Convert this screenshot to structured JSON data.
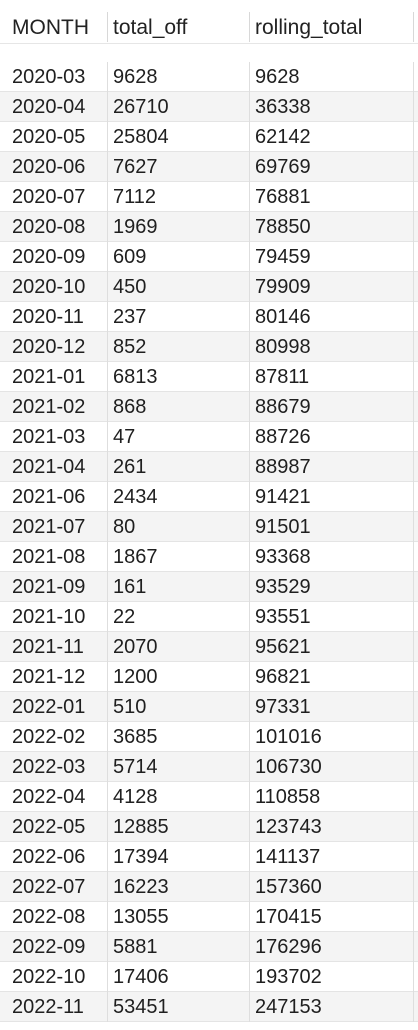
{
  "table": {
    "columns": [
      "MONTH",
      "total_off",
      "rolling_total"
    ],
    "rows": [
      [
        "2020-03",
        "9628",
        "9628"
      ],
      [
        "2020-04",
        "26710",
        "36338"
      ],
      [
        "2020-05",
        "25804",
        "62142"
      ],
      [
        "2020-06",
        "7627",
        "69769"
      ],
      [
        "2020-07",
        "7112",
        "76881"
      ],
      [
        "2020-08",
        "1969",
        "78850"
      ],
      [
        "2020-09",
        "609",
        "79459"
      ],
      [
        "2020-10",
        "450",
        "79909"
      ],
      [
        "2020-11",
        "237",
        "80146"
      ],
      [
        "2020-12",
        "852",
        "80998"
      ],
      [
        "2021-01",
        "6813",
        "87811"
      ],
      [
        "2021-02",
        "868",
        "88679"
      ],
      [
        "2021-03",
        "47",
        "88726"
      ],
      [
        "2021-04",
        "261",
        "88987"
      ],
      [
        "2021-06",
        "2434",
        "91421"
      ],
      [
        "2021-07",
        "80",
        "91501"
      ],
      [
        "2021-08",
        "1867",
        "93368"
      ],
      [
        "2021-09",
        "161",
        "93529"
      ],
      [
        "2021-10",
        "22",
        "93551"
      ],
      [
        "2021-11",
        "2070",
        "95621"
      ],
      [
        "2021-12",
        "1200",
        "96821"
      ],
      [
        "2022-01",
        "510",
        "97331"
      ],
      [
        "2022-02",
        "3685",
        "101016"
      ],
      [
        "2022-03",
        "5714",
        "106730"
      ],
      [
        "2022-04",
        "4128",
        "110858"
      ],
      [
        "2022-05",
        "12885",
        "123743"
      ],
      [
        "2022-06",
        "17394",
        "141137"
      ],
      [
        "2022-07",
        "16223",
        "157360"
      ],
      [
        "2022-08",
        "13055",
        "170415"
      ],
      [
        "2022-09",
        "5881",
        "176296"
      ],
      [
        "2022-10",
        "17406",
        "193702"
      ],
      [
        "2022-11",
        "53451",
        "247153"
      ]
    ]
  }
}
